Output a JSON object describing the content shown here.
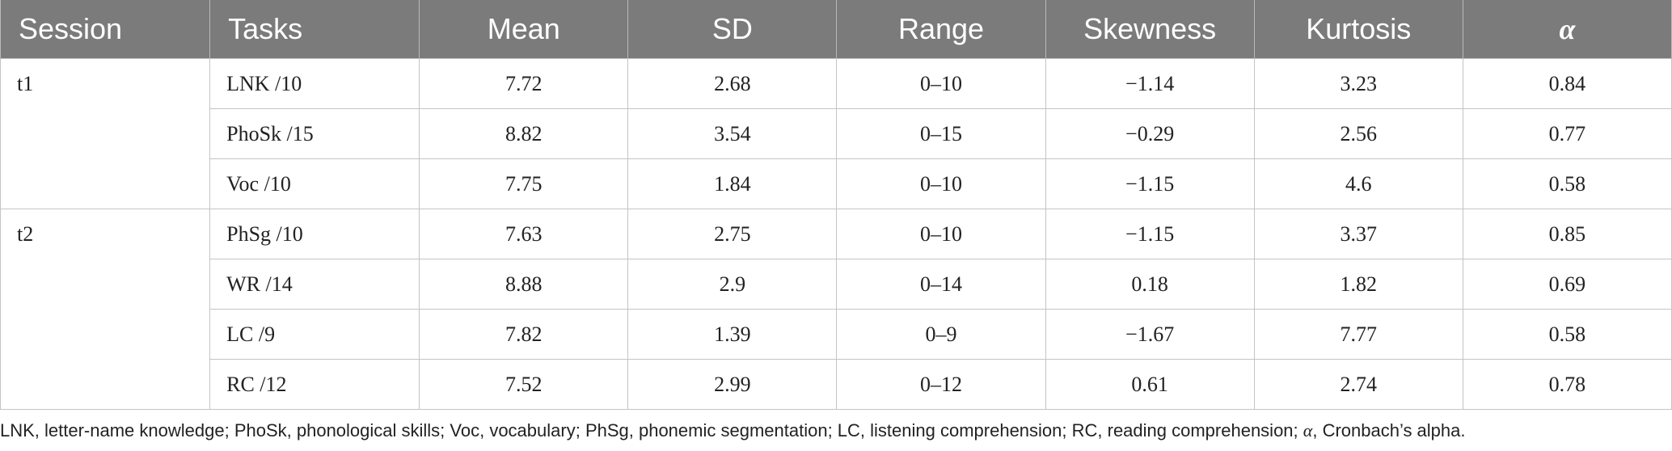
{
  "table": {
    "headers": [
      "Session",
      "Tasks",
      "Mean",
      "SD",
      "Range",
      "Skewness",
      "Kurtosis",
      "α"
    ],
    "sessions": [
      {
        "label": "t1",
        "rows": [
          [
            "LNK /10",
            "7.72",
            "2.68",
            "0–10",
            "−1.14",
            "3.23",
            "0.84"
          ],
          [
            "PhoSk /15",
            "8.82",
            "3.54",
            "0–15",
            "−0.29",
            "2.56",
            "0.77"
          ],
          [
            "Voc /10",
            "7.75",
            "1.84",
            "0–10",
            "−1.15",
            "4.6",
            "0.58"
          ]
        ]
      },
      {
        "label": "t2",
        "rows": [
          [
            "PhSg /10",
            "7.63",
            "2.75",
            "0–10",
            "−1.15",
            "3.37",
            "0.85"
          ],
          [
            "WR /14",
            "8.88",
            "2.9",
            "0–14",
            "0.18",
            "1.82",
            "0.69"
          ],
          [
            "LC /9",
            "7.82",
            "1.39",
            "0–9",
            "−1.67",
            "7.77",
            "0.58"
          ],
          [
            "RC /12",
            "7.52",
            "2.99",
            "0–12",
            "0.61",
            "2.74",
            "0.78"
          ]
        ]
      }
    ]
  },
  "footnote": {
    "before": "LNK, letter-name knowledge; PhoSk, phonological skills; Voc, vocabulary; PhSg, phonemic segmentation; LC, listening comprehension; RC, reading comprehension; ",
    "symbol": "α",
    "after": ", Cronbach’s alpha."
  }
}
